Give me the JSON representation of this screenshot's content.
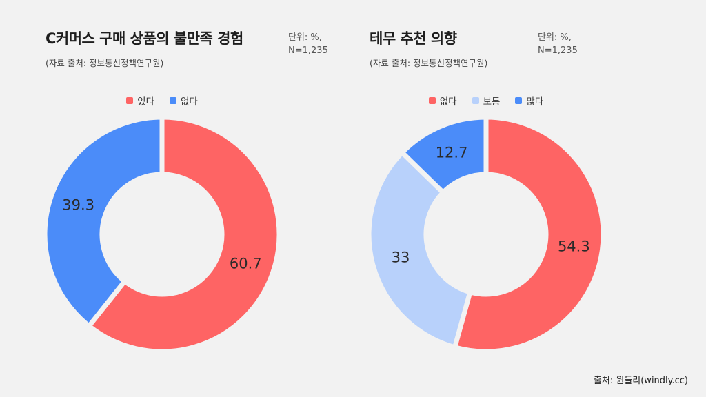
{
  "footer": "출처: 윈들리(windly.cc)",
  "colors": {
    "red": "#fe6464",
    "blue": "#4b8cf9",
    "lightblue": "#b8d1fb",
    "background": "#f2f2f2"
  },
  "panels": [
    {
      "title": "C커머스 구매 상품의 불만족 경험",
      "source": "(자료 출처: 정보통신정책연구원)",
      "unit_line1": "단위: %,",
      "unit_line2": "N=1,235"
    },
    {
      "title": "테무 추천 의향",
      "source": "(자료 출처: 정보통신정책연구원)",
      "unit_line1": "단위: %,",
      "unit_line2": "N=1,235"
    }
  ],
  "chart_data": [
    {
      "type": "pie",
      "title": "C커머스 구매 상품의 불만족 경험",
      "categories": [
        "있다",
        "없다"
      ],
      "values": [
        60.7,
        39.3
      ],
      "data_labels": [
        "60.7",
        "39.3"
      ],
      "colors": [
        "#fe6464",
        "#4b8cf9"
      ],
      "donut": true,
      "legend": "top"
    },
    {
      "type": "pie",
      "title": "테무 추천 의향",
      "categories": [
        "없다",
        "보통",
        "많다"
      ],
      "values": [
        54.3,
        33,
        12.7
      ],
      "data_labels": [
        "54.3",
        "33",
        "12.7"
      ],
      "colors": [
        "#fe6464",
        "#b8d1fb",
        "#4b8cf9"
      ],
      "donut": true,
      "legend": "top"
    }
  ]
}
